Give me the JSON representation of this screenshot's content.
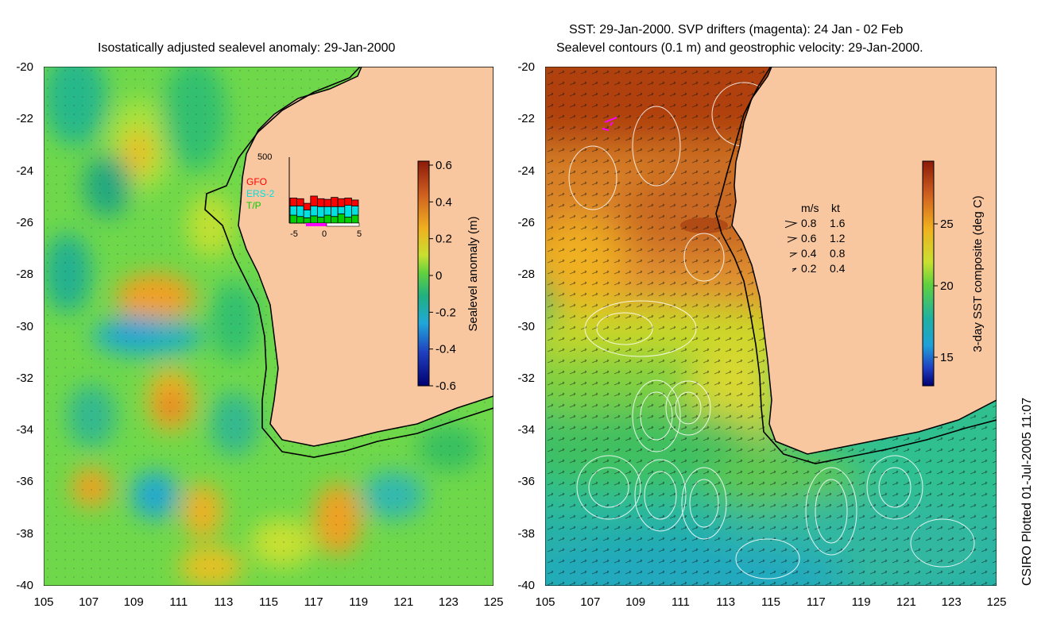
{
  "colors": {
    "land": "#f8c7a0",
    "coastline": "#000000",
    "isobath": "#000000",
    "drifter": "#ff00ff",
    "gfo": "#ff0000",
    "ers2": "#00e0e0",
    "tp": "#00d000",
    "contour": "#ffffff"
  },
  "left_panel": {
    "title": "Isostatically adjusted sealevel anomaly: 29-Jan-2000",
    "x_ticks": [
      "105",
      "107",
      "109",
      "111",
      "113",
      "115",
      "117",
      "119",
      "121",
      "123",
      "125"
    ],
    "y_ticks": [
      "-20",
      "-22",
      "-24",
      "-26",
      "-28",
      "-30",
      "-32",
      "-34",
      "-36",
      "-38",
      "-40"
    ],
    "colorbar": {
      "label": "Sealevel anomaly (m)",
      "ticks": [
        "0.6",
        "0.4",
        "0.2",
        "0",
        "-0.2",
        "-0.4",
        "-0.6"
      ],
      "range": [
        -0.6,
        0.6
      ]
    },
    "inset": {
      "y_max_label": "500",
      "x_ticks": [
        "-5",
        "0",
        "5"
      ],
      "legend": [
        {
          "name": "GFO",
          "color": "#ff0000"
        },
        {
          "name": "ERS-2",
          "color": "#00e0e0"
        },
        {
          "name": "T/P",
          "color": "#00d000"
        }
      ],
      "bars": [
        {
          "tp": 60,
          "ers": 70,
          "gfo": 60
        },
        {
          "tp": 50,
          "ers": 80,
          "gfo": 55
        },
        {
          "tp": 40,
          "ers": 60,
          "gfo": 50
        },
        {
          "tp": 55,
          "ers": 75,
          "gfo": 75
        },
        {
          "tp": 45,
          "ers": 80,
          "gfo": 60
        },
        {
          "tp": 60,
          "ers": 65,
          "gfo": 55
        },
        {
          "tp": 50,
          "ers": 75,
          "gfo": 70
        },
        {
          "tp": 70,
          "ers": 55,
          "gfo": 60
        },
        {
          "tp": 45,
          "ers": 90,
          "gfo": 55
        },
        {
          "tp": 60,
          "ers": 70,
          "gfo": 45
        }
      ],
      "bar_max": 500
    }
  },
  "right_panel": {
    "title_line1": "SST: 29-Jan-2000. SVP drifters (magenta): 24 Jan - 02 Feb",
    "title_line2": "Sealevel contours (0.1 m) and geostrophic velocity: 29-Jan-2000.",
    "x_ticks": [
      "105",
      "107",
      "109",
      "111",
      "113",
      "115",
      "117",
      "119",
      "121",
      "123",
      "125"
    ],
    "y_ticks": [
      "-20",
      "-22",
      "-24",
      "-26",
      "-28",
      "-30",
      "-32",
      "-34",
      "-36",
      "-38",
      "-40"
    ],
    "colorbar": {
      "label": "3-day SST composite (deg C)",
      "ticks": [
        "25",
        "20",
        "15"
      ]
    },
    "velocity_legend": {
      "header_ms": "m/s",
      "header_kt": "kt",
      "rows": [
        {
          "ms": "0.8",
          "kt": "1.6"
        },
        {
          "ms": "0.6",
          "kt": "1.2"
        },
        {
          "ms": "0.4",
          "kt": "0.8"
        },
        {
          "ms": "0.2",
          "kt": "0.4"
        }
      ]
    }
  },
  "credit": "CSIRO Plotted 01-Jul-2005 11:07"
}
